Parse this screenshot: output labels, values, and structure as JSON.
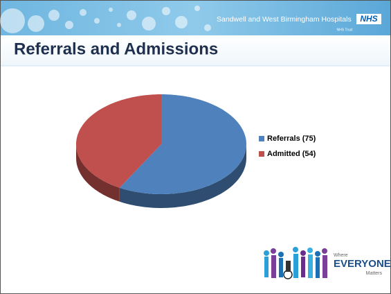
{
  "header": {
    "organization": "Sandwell and West Birmingham Hospitals",
    "logo": "NHS",
    "trust": "NHS Trust"
  },
  "chart_data": {
    "type": "pie",
    "title": "Referrals and Admissions",
    "series": [
      {
        "name": "Referrals (75)",
        "color": "#4f81bd",
        "values": [
          75
        ]
      },
      {
        "name": "Admitted (54)",
        "color": "#c0504d",
        "values": [
          54
        ]
      }
    ],
    "legend": "right"
  },
  "footer": {
    "line1": "Where",
    "line2": "EVERYONE",
    "line3": "Matters"
  }
}
